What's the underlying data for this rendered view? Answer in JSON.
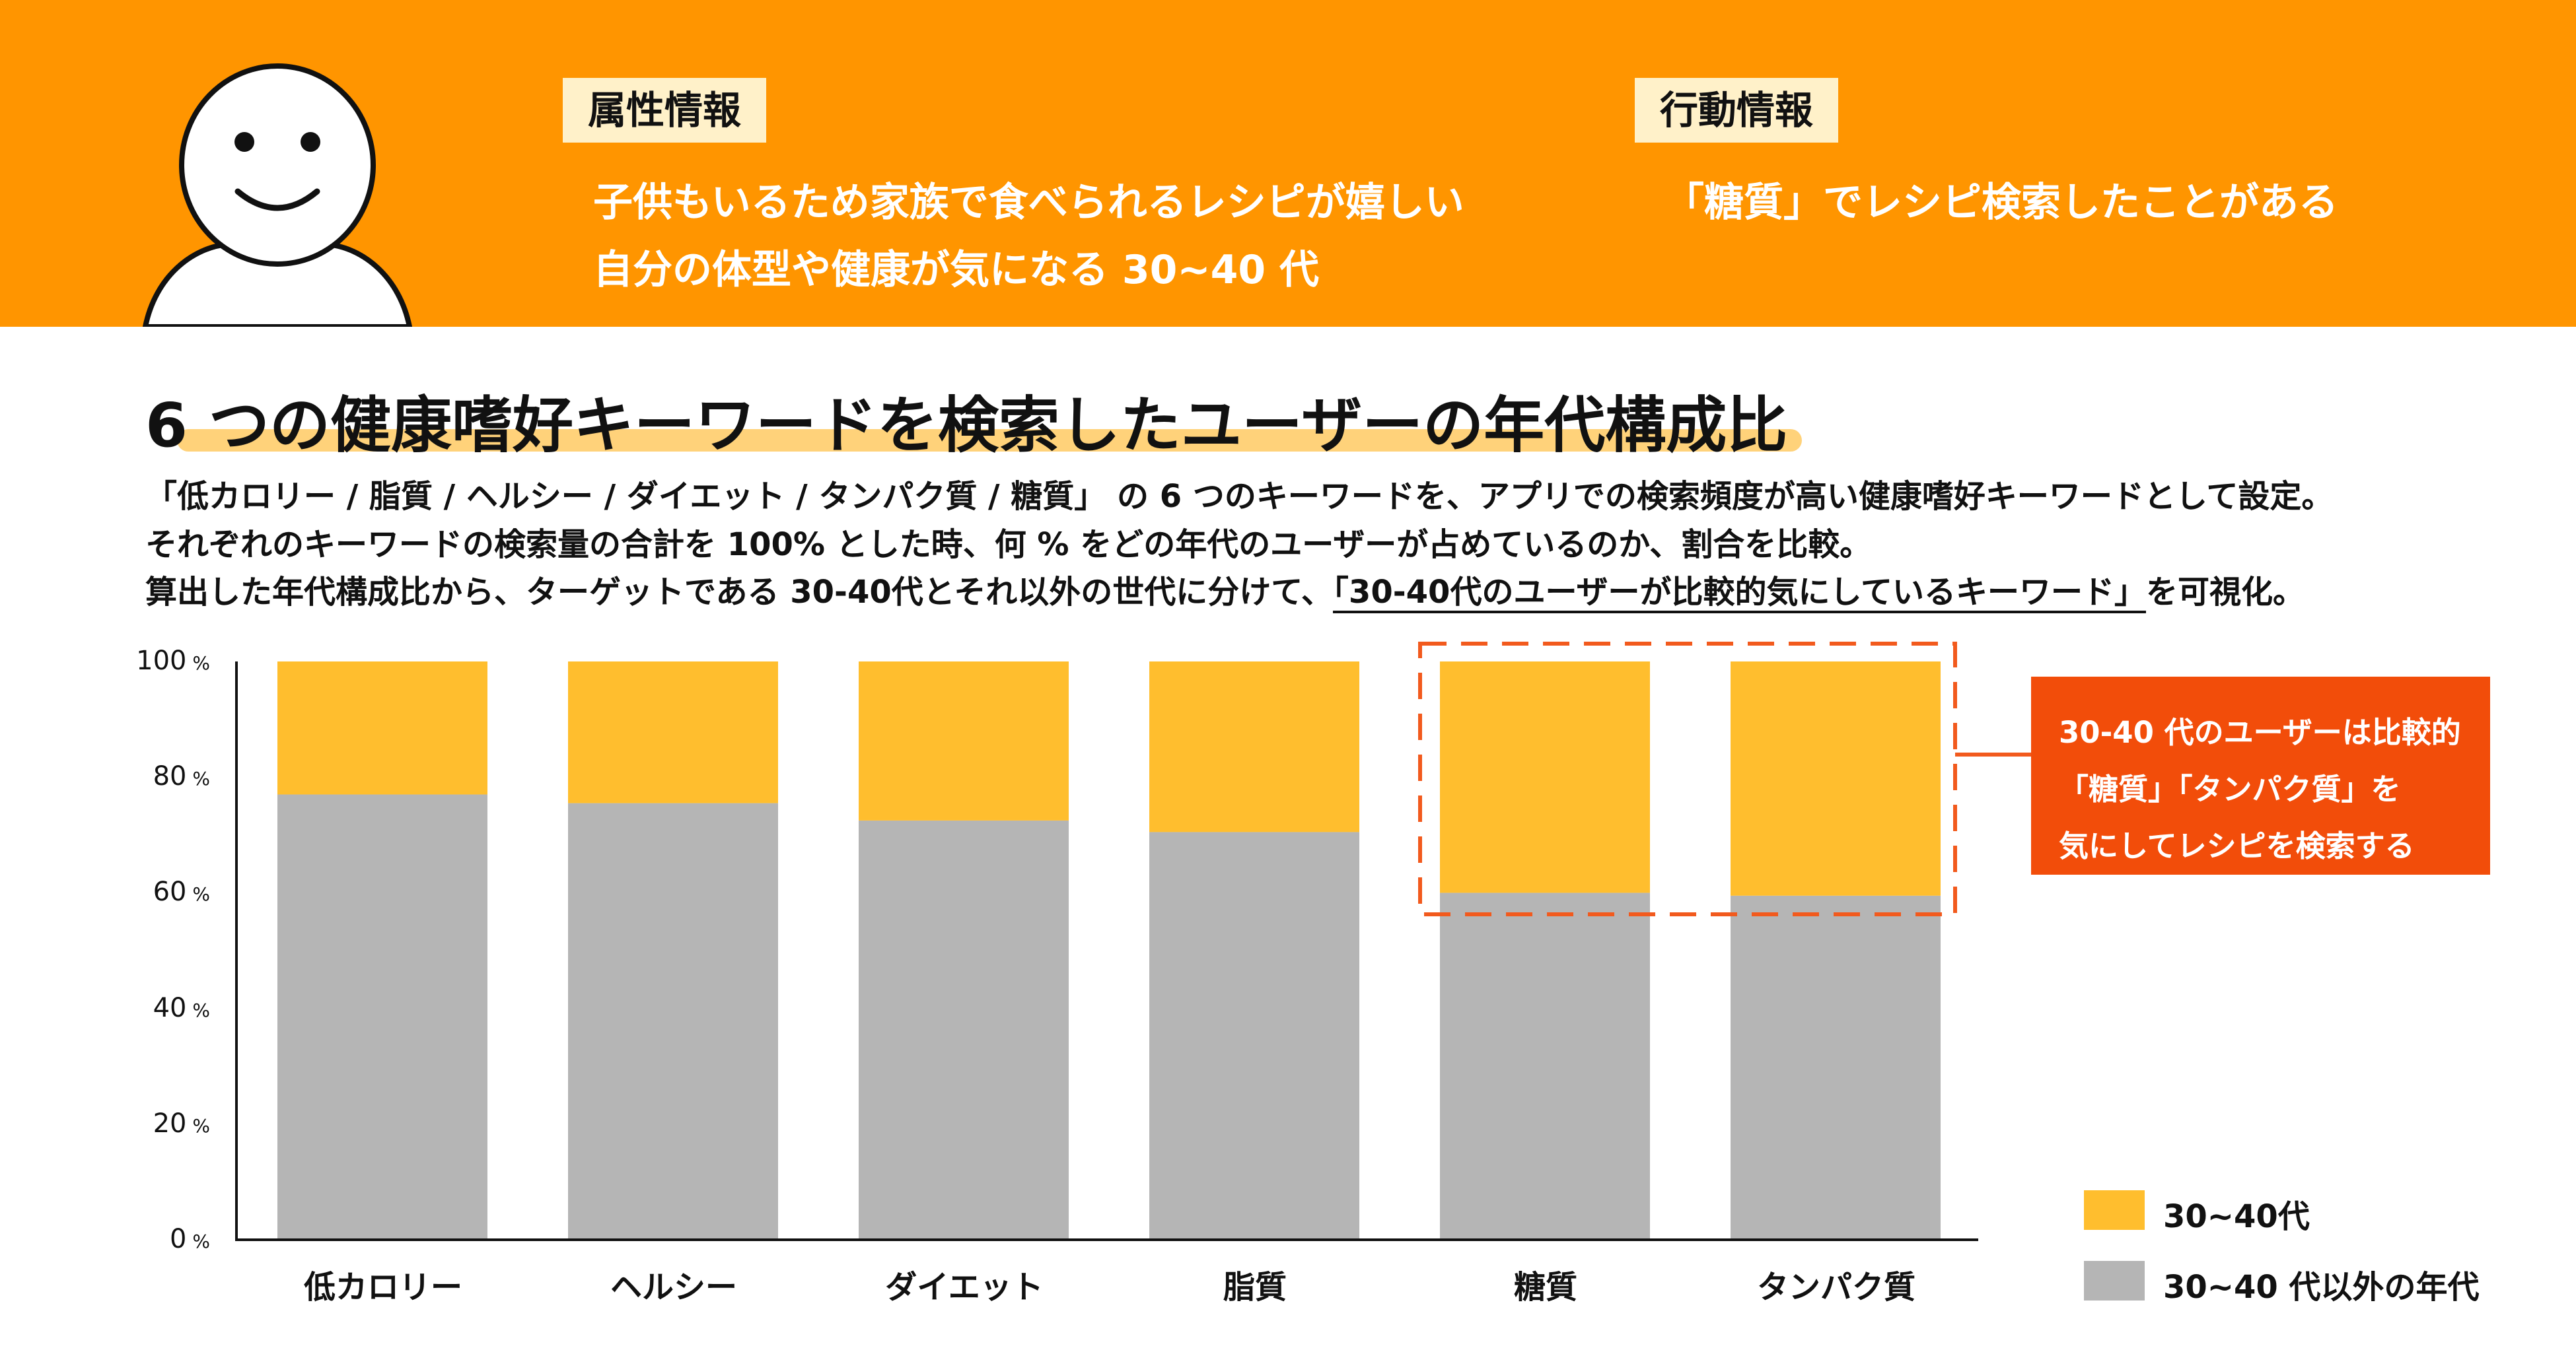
{
  "persona": {
    "attribute_tag": "属性情報",
    "attribute_line1": "子供もいるため家族で食べられるレシピが嬉しい",
    "attribute_line2": "自分の体型や健康が気になる 30~40 代",
    "behavior_tag": "行動情報",
    "behavior_line1": "「糖質」でレシピ検索したことがある"
  },
  "headline": "6 つの健康嗜好キーワードを検索したユーザーの年代構成比",
  "description": {
    "line1": "「低カロリー / 脂質 / ヘルシー / ダイエット / タンパク質 / 糖質」 の 6 つのキーワードを、アプリでの検索頻度が高い健康嗜好キーワードとして設定。",
    "line2": "それぞれのキーワードの検索量の合計を 100% とした時、何 % をどの年代のユーザーが占めているのか、割合を比較。",
    "line3_pre": "算出した年代構成比から、ターゲットである 30-40代とそれ以外の世代に分けて、",
    "line3_underlined": "「30-40代のユーザーが比較的気にしているキーワード」",
    "line3_post": "を可視化。"
  },
  "callout": {
    "line1": "30-40 代のユーザーは比較的",
    "line2": "「糖質」「タンパク質」を",
    "line3": "気にしてレシピを検索する"
  },
  "colors": {
    "banner": "#FF9500",
    "series_3040": "#FFBE2E",
    "series_other": "#B5B5B5",
    "callout": "#F24D0A",
    "highlight_dash": "#F25A1D"
  },
  "chart_data": {
    "type": "bar",
    "stacked": true,
    "categories": [
      "低カロリー",
      "ヘルシー",
      "ダイエット",
      "脂質",
      "糖質",
      "タンパク質"
    ],
    "series": [
      {
        "name": "30~40 代以外の年代",
        "values": [
          77,
          75.5,
          72.5,
          70.5,
          60,
          59.5
        ]
      },
      {
        "name": "30~40代",
        "values": [
          23,
          24.5,
          27.5,
          29.5,
          40,
          40.5
        ]
      }
    ],
    "ylim": [
      0,
      100
    ],
    "yticks": [
      "0",
      "20",
      "40",
      "60",
      "80",
      "100"
    ],
    "ytick_unit": "%",
    "highlighted_categories": [
      "糖質",
      "タンパク質"
    ],
    "legend_position": "bottom-right",
    "grid": false
  }
}
